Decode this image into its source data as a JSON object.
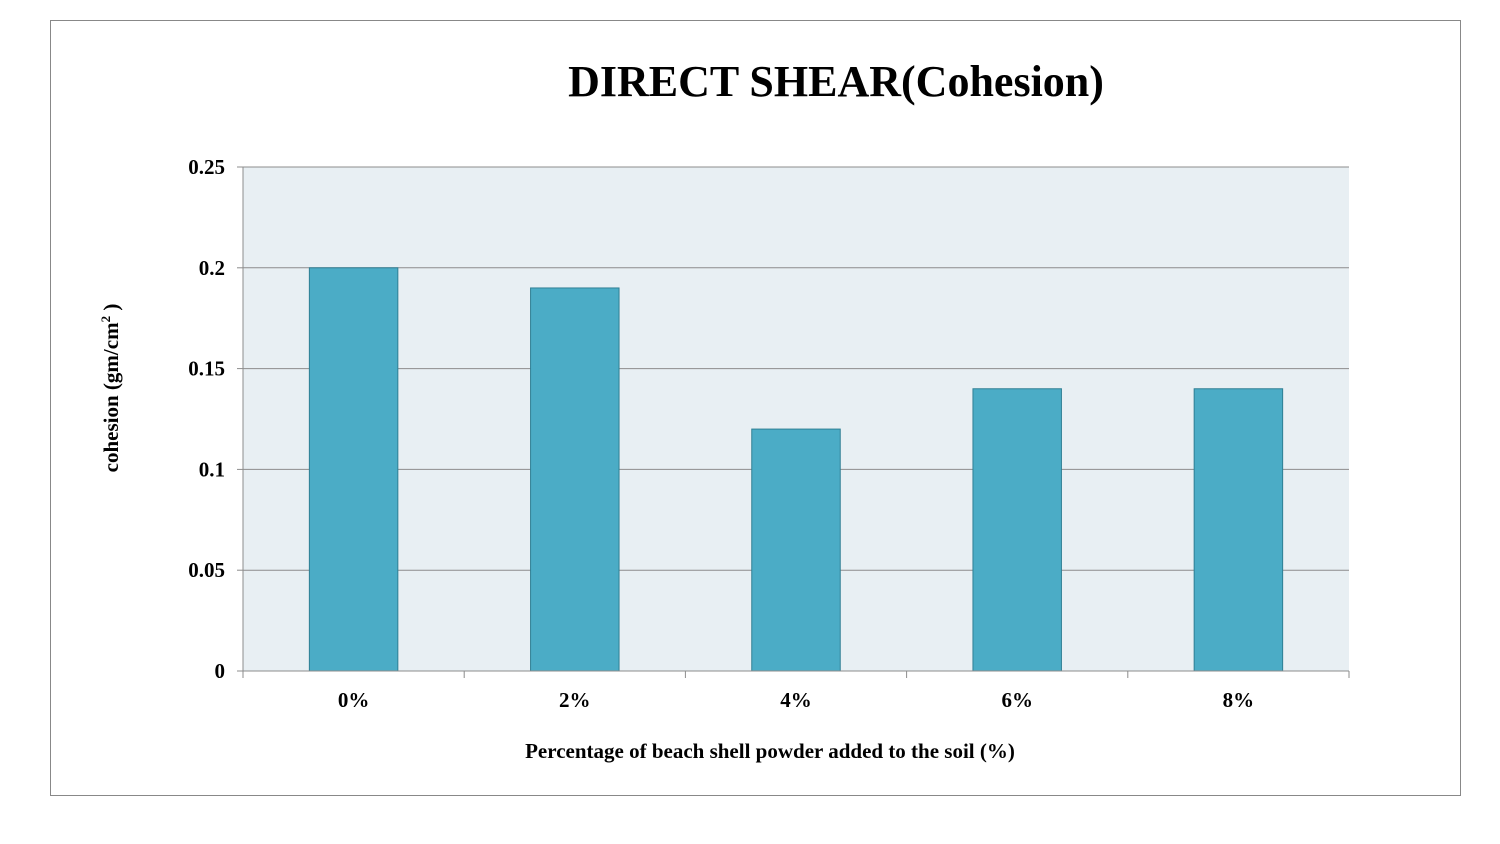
{
  "chart_data": {
    "type": "bar",
    "title": "DIRECT SHEAR(Cohesion)",
    "categories": [
      "0%",
      "2%",
      "4%",
      "6%",
      "8%"
    ],
    "values": [
      0.2,
      0.19,
      0.12,
      0.14,
      0.14
    ],
    "xlabel": "Percentage of beach shell powder added to the soil (%)",
    "ylabel": {
      "main": "cohesion (gm/cm",
      "superscript": "2",
      "tail": " )"
    },
    "ylim": [
      0,
      0.25
    ],
    "yticks": [
      "0",
      "0.05",
      "0.1",
      "0.15",
      "0.2",
      "0.25"
    ],
    "grid": true,
    "legend": "none",
    "colors": {
      "bar": "#4BACC6",
      "bar_edge": "#2F7F94",
      "plot_background": "#E8EFF3",
      "gridline": "#8C8C8C"
    }
  }
}
